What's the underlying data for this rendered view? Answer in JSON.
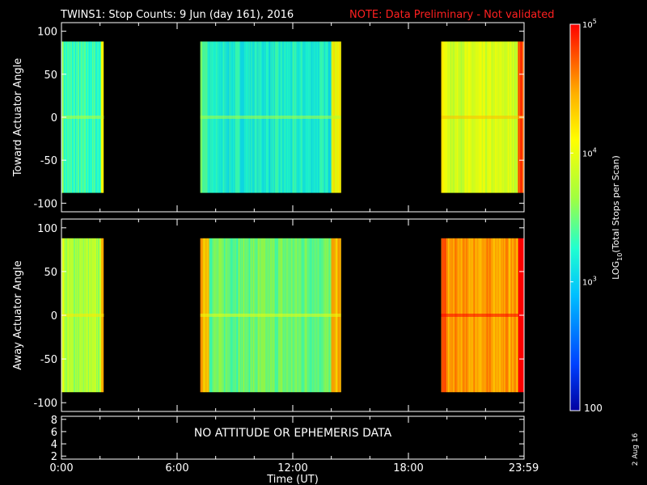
{
  "title": {
    "main": "TWINS1: Stop Counts:  9 Jun (day 161), 2016",
    "note": "NOTE: Data Preliminary - Not validated"
  },
  "date_stamp": "2 Aug 16",
  "no_data_message": "NO ATTITUDE OR EPHEMERIS DATA",
  "chart_data": [
    {
      "type": "heatmap",
      "panel": "toward",
      "ylabel": "Toward Actuator Angle",
      "ylim": [
        -110,
        110
      ],
      "yticks": [
        100,
        50,
        0,
        -50,
        -100
      ],
      "xlim": [
        0,
        24
      ],
      "xlabel": "",
      "data_extent_y": [
        -88,
        88
      ],
      "segments": [
        {
          "start_hr": 0.0,
          "end_hr": 2.2,
          "dominant_log10": 3.3
        },
        {
          "start_hr": 7.2,
          "end_hr": 14.5,
          "dominant_log10": 3.2
        },
        {
          "start_hr": 19.7,
          "end_hr": 24.0,
          "dominant_log10": 3.9
        }
      ]
    },
    {
      "type": "heatmap",
      "panel": "away",
      "ylabel": "Away Actuator Angle",
      "ylim": [
        -110,
        110
      ],
      "yticks": [
        100,
        50,
        0,
        -50,
        -100
      ],
      "xlim": [
        0,
        24
      ],
      "xlabel": "",
      "data_extent_y": [
        -88,
        88
      ],
      "segments": [
        {
          "start_hr": 0.0,
          "end_hr": 2.2,
          "dominant_log10": 3.7
        },
        {
          "start_hr": 7.2,
          "end_hr": 14.5,
          "dominant_log10": 3.5
        },
        {
          "start_hr": 19.7,
          "end_hr": 24.0,
          "dominant_log10": 4.5
        }
      ]
    },
    {
      "type": "line",
      "panel": "ephemeris",
      "yticks": [
        "8",
        "6",
        "4",
        "2"
      ],
      "ylim": [
        1.5,
        8.5
      ],
      "xlim": [
        0,
        24
      ],
      "xlabel": "Time (UT)",
      "xticks": [
        "0:00",
        "6:00",
        "12:00",
        "18:00",
        "23:59"
      ],
      "xtick_hours": [
        0,
        6,
        12,
        18,
        23.983
      ],
      "series": []
    }
  ],
  "colorbar": {
    "label_prefix": "LOG",
    "label_sub": "10",
    "label_suffix": "(Total Stops per Scan)",
    "min": 100,
    "max": 100000,
    "tick_min_label": "100",
    "ticks": [
      {
        "base": "10",
        "exp": "3",
        "value": 1000
      },
      {
        "base": "10",
        "exp": "4",
        "value": 10000
      },
      {
        "base": "10",
        "exp": "5",
        "value": 100000
      }
    ]
  }
}
